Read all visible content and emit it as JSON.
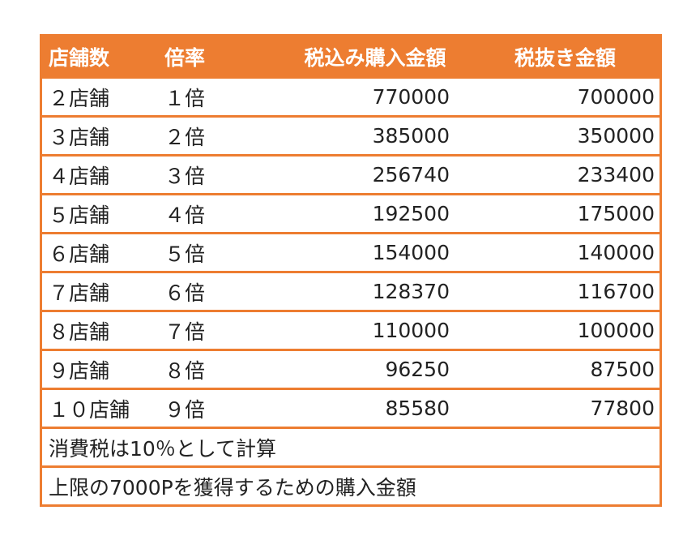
{
  "table": {
    "headers": [
      "店舗数",
      "倍率",
      "税込み購入金額",
      "税抜き金額"
    ],
    "rows": [
      {
        "stores": "２店舗",
        "multiplier": "１倍",
        "tax_included": "770000",
        "tax_excluded": "700000"
      },
      {
        "stores": "３店舗",
        "multiplier": "２倍",
        "tax_included": "385000",
        "tax_excluded": "350000"
      },
      {
        "stores": "４店舗",
        "multiplier": "３倍",
        "tax_included": "256740",
        "tax_excluded": "233400"
      },
      {
        "stores": "５店舗",
        "multiplier": "４倍",
        "tax_included": "192500",
        "tax_excluded": "175000"
      },
      {
        "stores": "６店舗",
        "multiplier": "５倍",
        "tax_included": "154000",
        "tax_excluded": "140000"
      },
      {
        "stores": "７店舗",
        "multiplier": "６倍",
        "tax_included": "128370",
        "tax_excluded": "116700"
      },
      {
        "stores": "８店舗",
        "multiplier": "７倍",
        "tax_included": "110000",
        "tax_excluded": "100000"
      },
      {
        "stores": "９店舗",
        "multiplier": "８倍",
        "tax_included": "96250",
        "tax_excluded": "87500"
      },
      {
        "stores": "１０店舗",
        "multiplier": "９倍",
        "tax_included": "85580",
        "tax_excluded": "77800"
      }
    ],
    "notes": [
      "消費税は10％として計算",
      "上限の7000Pを獲得するための購入金額"
    ]
  },
  "colors": {
    "accent": "#ed7d31",
    "header_text": "#ffffff",
    "body_text": "#222222"
  }
}
